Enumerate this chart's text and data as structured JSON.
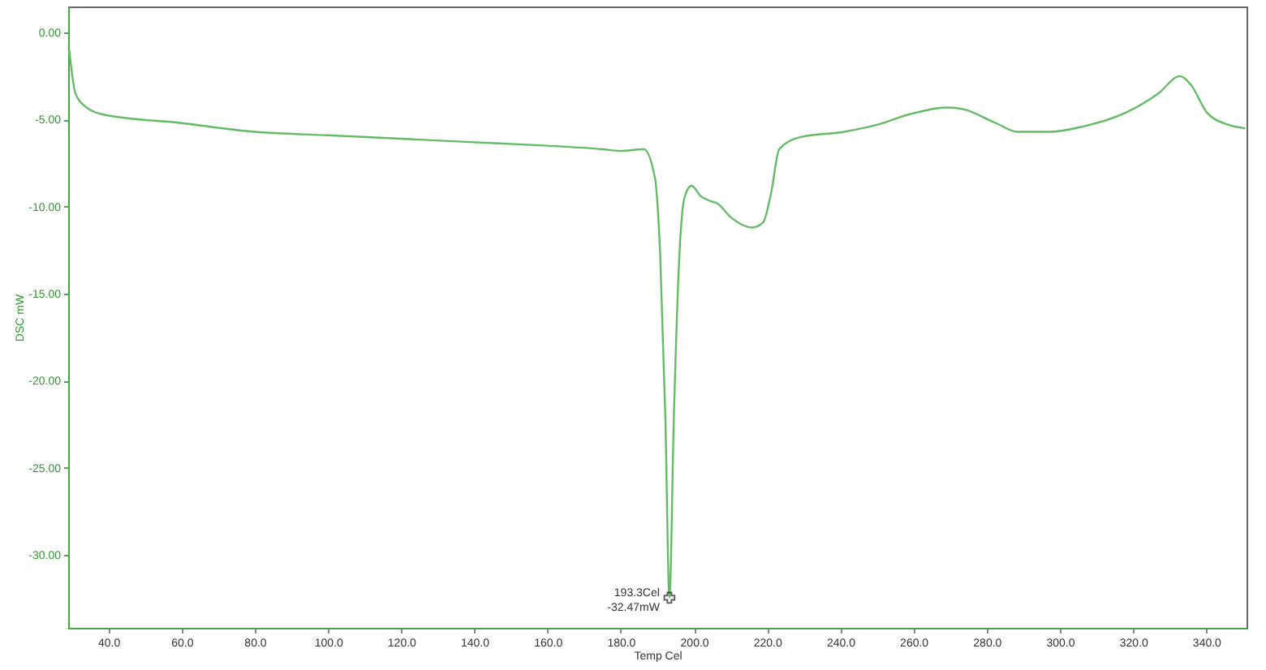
{
  "chart_data": {
    "type": "line",
    "xlabel": "Temp Cel",
    "ylabel": "DSC mW",
    "x": [
      29.3,
      31,
      34,
      38.4,
      60,
      80,
      100,
      120,
      140,
      160,
      175,
      180,
      186.3,
      189.3,
      190.8,
      192.2,
      193.3,
      194.5,
      196,
      197.4,
      199.3,
      201.9,
      204.8,
      206.3,
      210,
      215.9,
      218.9,
      221.1,
      223.3,
      229.2,
      241,
      250,
      258.8,
      269.2,
      273.6,
      282.5,
      288.4,
      297.3,
      306.2,
      318,
      326.9,
      332.8,
      335.8,
      340.2,
      346.1,
      350.6
    ],
    "series": [
      {
        "color": "#66bb66",
        "values": [
          -1.0,
          -3.5,
          -4.3,
          -4.7,
          -5.2,
          -5.7,
          -5.9,
          -6.1,
          -6.3,
          -6.5,
          -6.7,
          -6.8,
          -6.7,
          -8.3,
          -12.9,
          -22.2,
          -32.47,
          -22.2,
          -12.9,
          -9.5,
          -8.8,
          -9.4,
          -9.7,
          -9.8,
          -10.6,
          -11.2,
          -10.9,
          -9.2,
          -6.7,
          -6.0,
          -5.7,
          -5.3,
          -4.7,
          -4.3,
          -4.4,
          -5.2,
          -5.7,
          -5.7,
          -5.4,
          -4.6,
          -3.5,
          -2.5,
          -3.0,
          -4.6,
          -5.3,
          -5.5
        ]
      }
    ],
    "xlim": [
      29,
      351
    ],
    "ylim": [
      -34.2,
      1.5
    ],
    "xticks": [
      {
        "value": 40,
        "label": "40.0"
      },
      {
        "value": 60,
        "label": "60.0"
      },
      {
        "value": 80,
        "label": "80.0"
      },
      {
        "value": 100,
        "label": "100.0"
      },
      {
        "value": 120,
        "label": "120.0"
      },
      {
        "value": 140,
        "label": "140.0"
      },
      {
        "value": 160,
        "label": "160.0"
      },
      {
        "value": 180,
        "label": "180.0"
      },
      {
        "value": 200,
        "label": "200.0"
      },
      {
        "value": 220,
        "label": "220.0"
      },
      {
        "value": 240,
        "label": "240.0"
      },
      {
        "value": 260,
        "label": "260.0"
      },
      {
        "value": 280,
        "label": "280.0"
      },
      {
        "value": 300,
        "label": "300.0"
      },
      {
        "value": 320,
        "label": "320.0"
      },
      {
        "value": 340,
        "label": "340.0"
      }
    ],
    "yticks": [
      {
        "value": 0,
        "label": "0.00"
      },
      {
        "value": -5,
        "label": "-5.00"
      },
      {
        "value": -10,
        "label": "-10.00"
      },
      {
        "value": -15,
        "label": "-15.00"
      },
      {
        "value": -20,
        "label": "-20.00"
      },
      {
        "value": -25,
        "label": "-25.00"
      },
      {
        "value": -30,
        "label": "-30.00"
      }
    ],
    "annotations": [
      {
        "text": "193.3Cel\n-32.47mW",
        "x": 193.3,
        "y": -32.47
      }
    ],
    "grid": false,
    "marker": "none",
    "line_style": "solid"
  }
}
